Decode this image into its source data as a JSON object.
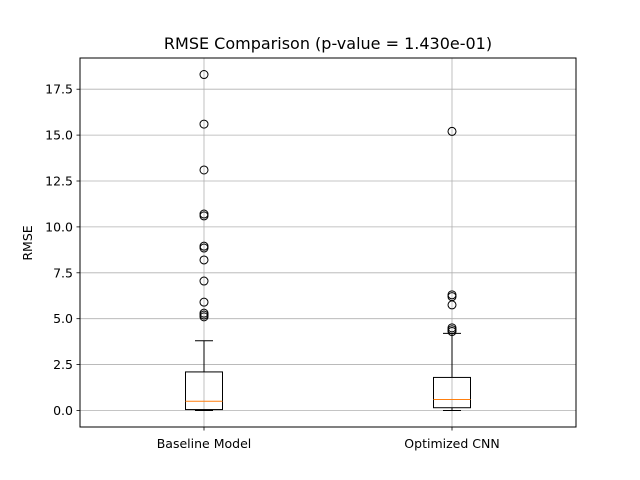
{
  "chart_data": {
    "type": "box",
    "title": "RMSE Comparison (p-value = 1.430e-01)",
    "xlabel": "",
    "ylabel": "RMSE",
    "ylim": [
      -0.9,
      19.2
    ],
    "yticks": [
      0.0,
      2.5,
      5.0,
      7.5,
      10.0,
      12.5,
      15.0,
      17.5
    ],
    "ytick_labels": [
      "0.0",
      "2.5",
      "5.0",
      "7.5",
      "10.0",
      "12.5",
      "15.0",
      "17.5"
    ],
    "grid": true,
    "categories": [
      "Baseline Model",
      "Optimized CNN"
    ],
    "boxes": [
      {
        "name": "Baseline Model",
        "whisker_low": 0.0,
        "q1": 0.05,
        "median": 0.5,
        "q3": 2.1,
        "whisker_high": 3.8,
        "outliers": [
          18.3,
          15.6,
          13.1,
          10.7,
          10.6,
          8.95,
          8.85,
          8.2,
          7.05,
          5.9,
          5.3,
          5.2,
          5.1
        ]
      },
      {
        "name": "Optimized CNN",
        "whisker_low": 0.0,
        "q1": 0.15,
        "median": 0.6,
        "q3": 1.8,
        "whisker_high": 4.2,
        "outliers": [
          15.2,
          6.3,
          6.2,
          5.75,
          4.5,
          4.4,
          4.3
        ]
      }
    ],
    "colors": {
      "box": "#000000",
      "median": "#ff7f0e",
      "grid": "#b0b0b0",
      "outlier": "#000000"
    }
  }
}
